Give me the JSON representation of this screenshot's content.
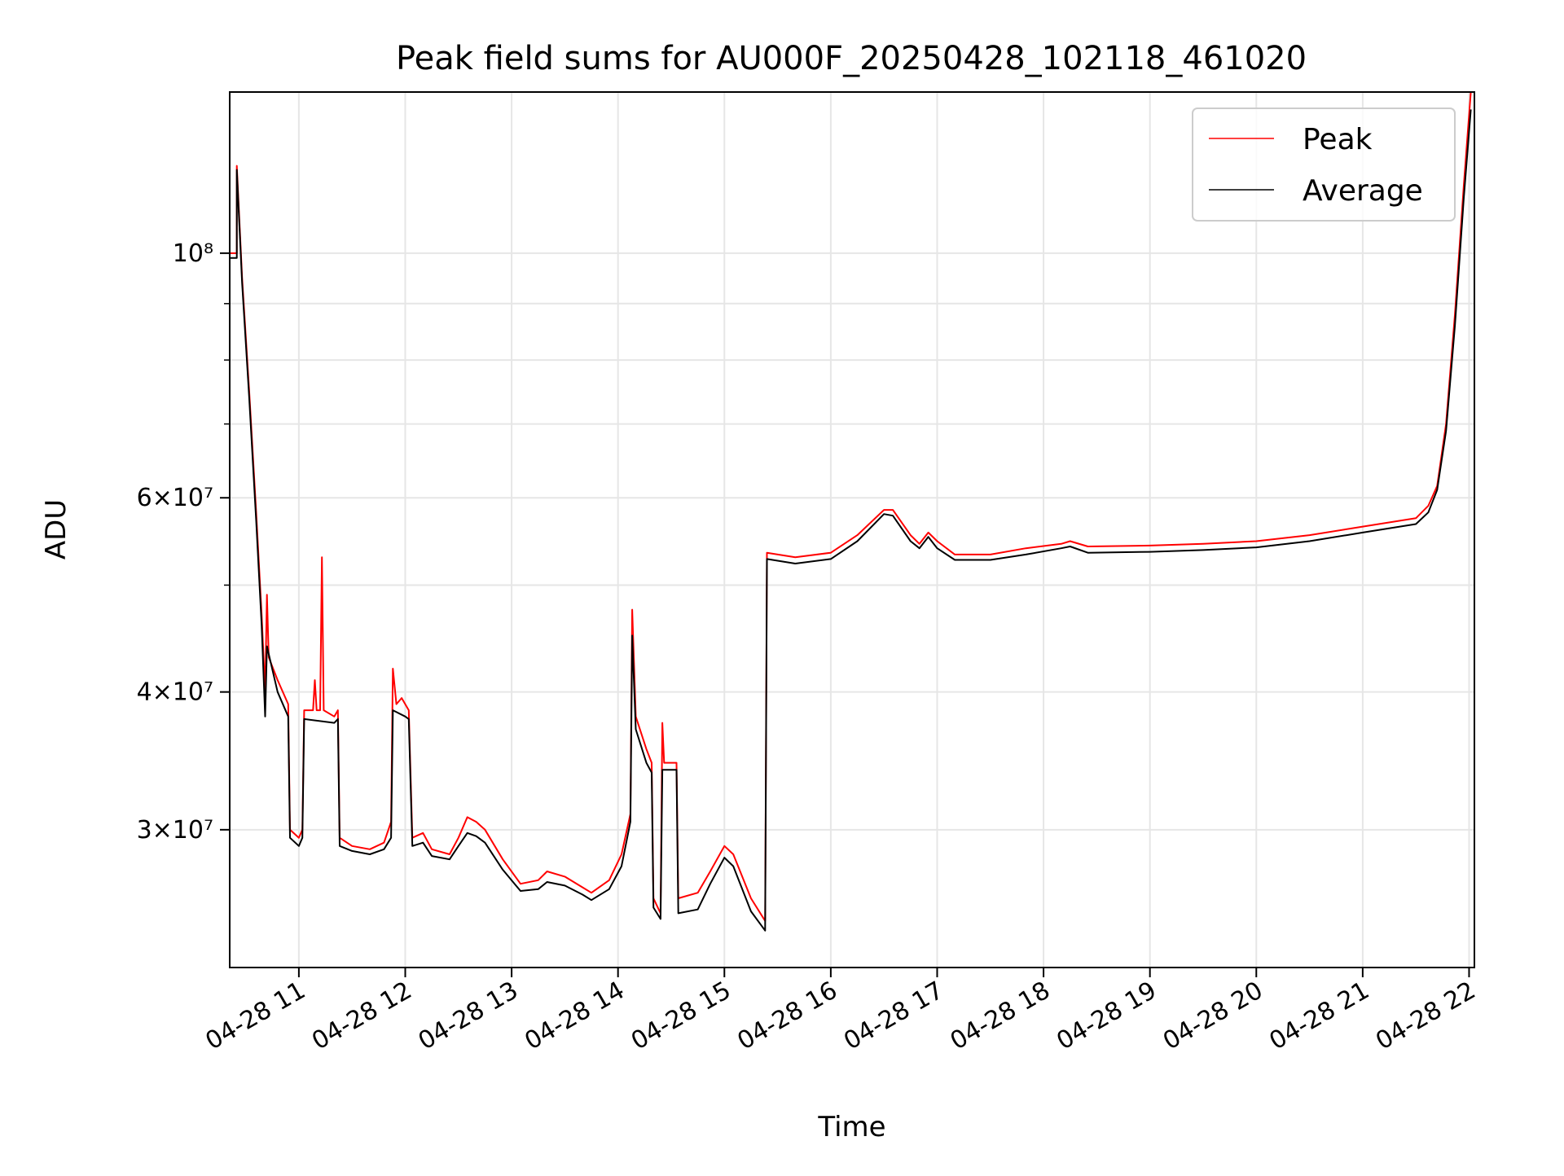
{
  "chart_data": {
    "type": "line",
    "title": "Peak field sums for AU000F_20250428_102118_461020",
    "xlabel": "Time",
    "ylabel": "ADU",
    "y_scale": "log",
    "ylim": [
      22500000,
      140000000
    ],
    "xlim": [
      "2025-04-28 10:21",
      "2025-04-28 22:03"
    ],
    "grid": true,
    "legend_position": "top-right",
    "x_ticks": [
      {
        "t": "2025-04-28 11:00",
        "label": "04-28 11"
      },
      {
        "t": "2025-04-28 12:00",
        "label": "04-28 12"
      },
      {
        "t": "2025-04-28 13:00",
        "label": "04-28 13"
      },
      {
        "t": "2025-04-28 14:00",
        "label": "04-28 14"
      },
      {
        "t": "2025-04-28 15:00",
        "label": "04-28 15"
      },
      {
        "t": "2025-04-28 16:00",
        "label": "04-28 16"
      },
      {
        "t": "2025-04-28 17:00",
        "label": "04-28 17"
      },
      {
        "t": "2025-04-28 18:00",
        "label": "04-28 18"
      },
      {
        "t": "2025-04-28 19:00",
        "label": "04-28 19"
      },
      {
        "t": "2025-04-28 20:00",
        "label": "04-28 20"
      },
      {
        "t": "2025-04-28 21:00",
        "label": "04-28 21"
      },
      {
        "t": "2025-04-28 22:00",
        "label": "04-28 22"
      }
    ],
    "y_ticks": [
      {
        "value": 30000000,
        "label": "3×10⁷"
      },
      {
        "value": 40000000,
        "label": "4×10⁷"
      },
      {
        "value": 60000000,
        "label": "6×10⁷"
      },
      {
        "value": 100000000,
        "label": "10⁸"
      }
    ],
    "y_minor_ticks": [
      50000000,
      70000000,
      80000000,
      90000000
    ],
    "series": [
      {
        "name": "Peak",
        "color": "#ff0000",
        "points": [
          [
            "2025-04-28 10:21",
            100000000
          ],
          [
            "2025-04-28 10:25",
            100000000
          ],
          [
            "2025-04-28 10:25",
            120000000
          ],
          [
            "2025-04-28 10:28",
            95000000
          ],
          [
            "2025-04-28 10:32",
            75000000
          ],
          [
            "2025-04-28 10:36",
            58000000
          ],
          [
            "2025-04-28 10:39",
            47000000
          ],
          [
            "2025-04-28 10:41",
            40000000
          ],
          [
            "2025-04-28 10:42",
            49000000
          ],
          [
            "2025-04-28 10:43",
            43000000
          ],
          [
            "2025-04-28 10:48",
            41000000
          ],
          [
            "2025-04-28 10:54",
            39000000
          ],
          [
            "2025-04-28 10:55",
            30000000
          ],
          [
            "2025-04-28 11:00",
            29500000
          ],
          [
            "2025-04-28 11:02",
            30000000
          ],
          [
            "2025-04-28 11:03",
            38500000
          ],
          [
            "2025-04-28 11:08",
            38500000
          ],
          [
            "2025-04-28 11:09",
            41000000
          ],
          [
            "2025-04-28 11:10",
            38500000
          ],
          [
            "2025-04-28 11:12",
            38500000
          ],
          [
            "2025-04-28 11:13",
            53000000
          ],
          [
            "2025-04-28 11:14",
            38500000
          ],
          [
            "2025-04-28 11:20",
            38000000
          ],
          [
            "2025-04-28 11:22",
            38500000
          ],
          [
            "2025-04-28 11:23",
            29500000
          ],
          [
            "2025-04-28 11:30",
            29000000
          ],
          [
            "2025-04-28 11:40",
            28800000
          ],
          [
            "2025-04-28 11:48",
            29200000
          ],
          [
            "2025-04-28 11:52",
            30500000
          ],
          [
            "2025-04-28 11:53",
            42000000
          ],
          [
            "2025-04-28 11:55",
            39000000
          ],
          [
            "2025-04-28 11:58",
            39500000
          ],
          [
            "2025-04-28 12:02",
            38500000
          ],
          [
            "2025-04-28 12:04",
            29500000
          ],
          [
            "2025-04-28 12:10",
            29800000
          ],
          [
            "2025-04-28 12:15",
            28800000
          ],
          [
            "2025-04-28 12:25",
            28500000
          ],
          [
            "2025-04-28 12:30",
            29500000
          ],
          [
            "2025-04-28 12:35",
            30800000
          ],
          [
            "2025-04-28 12:40",
            30500000
          ],
          [
            "2025-04-28 12:45",
            30000000
          ],
          [
            "2025-04-28 12:55",
            28200000
          ],
          [
            "2025-04-28 13:05",
            26800000
          ],
          [
            "2025-04-28 13:15",
            27000000
          ],
          [
            "2025-04-28 13:20",
            27500000
          ],
          [
            "2025-04-28 13:30",
            27200000
          ],
          [
            "2025-04-28 13:40",
            26600000
          ],
          [
            "2025-04-28 13:45",
            26300000
          ],
          [
            "2025-04-28 13:55",
            27000000
          ],
          [
            "2025-04-28 14:02",
            28500000
          ],
          [
            "2025-04-28 14:07",
            31000000
          ],
          [
            "2025-04-28 14:08",
            47500000
          ],
          [
            "2025-04-28 14:10",
            38000000
          ],
          [
            "2025-04-28 14:16",
            35500000
          ],
          [
            "2025-04-28 14:19",
            34500000
          ],
          [
            "2025-04-28 14:20",
            26000000
          ],
          [
            "2025-04-28 14:24",
            25200000
          ],
          [
            "2025-04-28 14:25",
            37500000
          ],
          [
            "2025-04-28 14:26",
            34500000
          ],
          [
            "2025-04-28 14:33",
            34500000
          ],
          [
            "2025-04-28 14:34",
            26000000
          ],
          [
            "2025-04-28 14:45",
            26300000
          ],
          [
            "2025-04-28 14:52",
            27500000
          ],
          [
            "2025-04-28 15:00",
            29000000
          ],
          [
            "2025-04-28 15:05",
            28500000
          ],
          [
            "2025-04-28 15:15",
            26000000
          ],
          [
            "2025-04-28 15:23",
            24800000
          ],
          [
            "2025-04-28 15:24",
            53500000
          ],
          [
            "2025-04-28 15:40",
            53000000
          ],
          [
            "2025-04-28 16:00",
            53500000
          ],
          [
            "2025-04-28 16:15",
            55500000
          ],
          [
            "2025-04-28 16:30",
            58500000
          ],
          [
            "2025-04-28 16:35",
            58500000
          ],
          [
            "2025-04-28 16:45",
            55500000
          ],
          [
            "2025-04-28 16:50",
            54500000
          ],
          [
            "2025-04-28 16:55",
            55800000
          ],
          [
            "2025-04-28 17:00",
            54800000
          ],
          [
            "2025-04-28 17:10",
            53300000
          ],
          [
            "2025-04-28 17:30",
            53300000
          ],
          [
            "2025-04-28 17:50",
            54000000
          ],
          [
            "2025-04-28 18:10",
            54500000
          ],
          [
            "2025-04-28 18:15",
            54800000
          ],
          [
            "2025-04-28 18:25",
            54200000
          ],
          [
            "2025-04-28 19:00",
            54300000
          ],
          [
            "2025-04-28 19:30",
            54500000
          ],
          [
            "2025-04-28 20:00",
            54800000
          ],
          [
            "2025-04-28 20:30",
            55500000
          ],
          [
            "2025-04-28 21:00",
            56500000
          ],
          [
            "2025-04-28 21:30",
            57500000
          ],
          [
            "2025-04-28 21:37",
            59000000
          ],
          [
            "2025-04-28 21:42",
            61500000
          ],
          [
            "2025-04-28 21:47",
            70000000
          ],
          [
            "2025-04-28 21:52",
            88000000
          ],
          [
            "2025-04-28 21:57",
            115000000
          ],
          [
            "2025-04-28 22:01",
            140000000
          ]
        ]
      },
      {
        "name": "Average",
        "color": "#000000",
        "points": [
          [
            "2025-04-28 10:21",
            99000000
          ],
          [
            "2025-04-28 10:25",
            99000000
          ],
          [
            "2025-04-28 10:25",
            119000000
          ],
          [
            "2025-04-28 10:28",
            94000000
          ],
          [
            "2025-04-28 10:32",
            74000000
          ],
          [
            "2025-04-28 10:36",
            57000000
          ],
          [
            "2025-04-28 10:39",
            46000000
          ],
          [
            "2025-04-28 10:41",
            38000000
          ],
          [
            "2025-04-28 10:42",
            44000000
          ],
          [
            "2025-04-28 10:48",
            40000000
          ],
          [
            "2025-04-28 10:54",
            38000000
          ],
          [
            "2025-04-28 10:55",
            29500000
          ],
          [
            "2025-04-28 11:00",
            29000000
          ],
          [
            "2025-04-28 11:02",
            29500000
          ],
          [
            "2025-04-28 11:03",
            37800000
          ],
          [
            "2025-04-28 11:20",
            37500000
          ],
          [
            "2025-04-28 11:22",
            37800000
          ],
          [
            "2025-04-28 11:23",
            29000000
          ],
          [
            "2025-04-28 11:30",
            28700000
          ],
          [
            "2025-04-28 11:40",
            28500000
          ],
          [
            "2025-04-28 11:48",
            28800000
          ],
          [
            "2025-04-28 11:52",
            29500000
          ],
          [
            "2025-04-28 11:53",
            38500000
          ],
          [
            "2025-04-28 12:00",
            38000000
          ],
          [
            "2025-04-28 12:02",
            37800000
          ],
          [
            "2025-04-28 12:04",
            29000000
          ],
          [
            "2025-04-28 12:10",
            29200000
          ],
          [
            "2025-04-28 12:15",
            28400000
          ],
          [
            "2025-04-28 12:25",
            28200000
          ],
          [
            "2025-04-28 12:30",
            29000000
          ],
          [
            "2025-04-28 12:35",
            29800000
          ],
          [
            "2025-04-28 12:40",
            29600000
          ],
          [
            "2025-04-28 12:45",
            29200000
          ],
          [
            "2025-04-28 12:55",
            27600000
          ],
          [
            "2025-04-28 13:05",
            26400000
          ],
          [
            "2025-04-28 13:15",
            26500000
          ],
          [
            "2025-04-28 13:20",
            26900000
          ],
          [
            "2025-04-28 13:30",
            26700000
          ],
          [
            "2025-04-28 13:40",
            26200000
          ],
          [
            "2025-04-28 13:45",
            25900000
          ],
          [
            "2025-04-28 13:55",
            26500000
          ],
          [
            "2025-04-28 14:02",
            27800000
          ],
          [
            "2025-04-28 14:07",
            30500000
          ],
          [
            "2025-04-28 14:08",
            45000000
          ],
          [
            "2025-04-28 14:10",
            37000000
          ],
          [
            "2025-04-28 14:16",
            34500000
          ],
          [
            "2025-04-28 14:19",
            33800000
          ],
          [
            "2025-04-28 14:20",
            25500000
          ],
          [
            "2025-04-28 14:24",
            24900000
          ],
          [
            "2025-04-28 14:25",
            34000000
          ],
          [
            "2025-04-28 14:33",
            34000000
          ],
          [
            "2025-04-28 14:34",
            25200000
          ],
          [
            "2025-04-28 14:45",
            25400000
          ],
          [
            "2025-04-28 14:52",
            26800000
          ],
          [
            "2025-04-28 15:00",
            28300000
          ],
          [
            "2025-04-28 15:05",
            27800000
          ],
          [
            "2025-04-28 15:15",
            25300000
          ],
          [
            "2025-04-28 15:23",
            24300000
          ],
          [
            "2025-04-28 15:24",
            52800000
          ],
          [
            "2025-04-28 15:40",
            52300000
          ],
          [
            "2025-04-28 16:00",
            52800000
          ],
          [
            "2025-04-28 16:15",
            54800000
          ],
          [
            "2025-04-28 16:30",
            58000000
          ],
          [
            "2025-04-28 16:35",
            57800000
          ],
          [
            "2025-04-28 16:45",
            54800000
          ],
          [
            "2025-04-28 16:50",
            54000000
          ],
          [
            "2025-04-28 16:55",
            55300000
          ],
          [
            "2025-04-28 17:00",
            54000000
          ],
          [
            "2025-04-28 17:10",
            52700000
          ],
          [
            "2025-04-28 17:30",
            52700000
          ],
          [
            "2025-04-28 17:50",
            53300000
          ],
          [
            "2025-04-28 18:10",
            54000000
          ],
          [
            "2025-04-28 18:15",
            54200000
          ],
          [
            "2025-04-28 18:25",
            53500000
          ],
          [
            "2025-04-28 19:00",
            53600000
          ],
          [
            "2025-04-28 19:30",
            53800000
          ],
          [
            "2025-04-28 20:00",
            54100000
          ],
          [
            "2025-04-28 20:30",
            54800000
          ],
          [
            "2025-04-28 21:00",
            55800000
          ],
          [
            "2025-04-28 21:30",
            56800000
          ],
          [
            "2025-04-28 21:37",
            58200000
          ],
          [
            "2025-04-28 21:42",
            61000000
          ],
          [
            "2025-04-28 21:47",
            69000000
          ],
          [
            "2025-04-28 21:52",
            86000000
          ],
          [
            "2025-04-28 21:57",
            112000000
          ],
          [
            "2025-04-28 22:01",
            135000000
          ]
        ]
      }
    ]
  }
}
